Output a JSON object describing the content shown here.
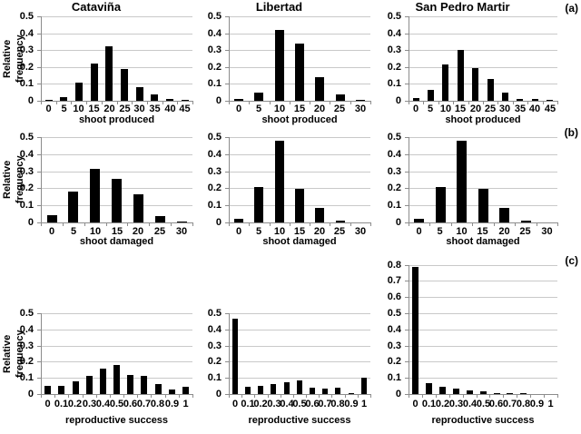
{
  "figure": {
    "row_labels": [
      "(a)",
      "(b)",
      "(c)"
    ],
    "column_titles": [
      "Cataviña",
      "Libertad",
      "San Pedro Martir"
    ],
    "y_axis_title": "Relative frequency",
    "colors": {
      "background": "#ffffff",
      "bar": "#000000",
      "gridline": "#c9c9c9",
      "axis": "#8c8c8c",
      "text": "#000000"
    }
  },
  "chart_data": [
    {
      "type": "bar",
      "row": 0,
      "col": 0,
      "title": "Cataviña",
      "xlabel": "shoot produced",
      "ylabel": "Relative frequency",
      "ylim": [
        0,
        0.5
      ],
      "yticks": [
        "0",
        "0.1",
        "0.2",
        "0.3",
        "0.4",
        "0.5"
      ],
      "grid": true,
      "categories": [
        "0",
        "5",
        "10",
        "15",
        "20",
        "25",
        "30",
        "35",
        "40",
        "45"
      ],
      "values": [
        0.005,
        0.02,
        0.11,
        0.22,
        0.32,
        0.19,
        0.08,
        0.04,
        0.01,
        0.005
      ]
    },
    {
      "type": "bar",
      "row": 0,
      "col": 1,
      "title": "Libertad",
      "xlabel": "shoot produced",
      "ylabel": null,
      "ylim": [
        0,
        0.5
      ],
      "yticks": [
        "0",
        "0.1",
        "0.2",
        "0.3",
        "0.4",
        "0.5"
      ],
      "grid": true,
      "categories": [
        "0",
        "5",
        "10",
        "15",
        "20",
        "25",
        "30"
      ],
      "values": [
        0.01,
        0.05,
        0.42,
        0.34,
        0.14,
        0.04,
        0.005
      ]
    },
    {
      "type": "bar",
      "row": 0,
      "col": 2,
      "title": "San Pedro Martir",
      "xlabel": "shoot produced",
      "ylabel": null,
      "ylim": [
        0,
        0.5
      ],
      "yticks": [
        "0",
        "0.1",
        "0.2",
        "0.3",
        "0.4",
        "0.5"
      ],
      "grid": true,
      "categories": [
        "0",
        "5",
        "10",
        "15",
        "20",
        "25",
        "30",
        "35",
        "40",
        "45"
      ],
      "values": [
        0.015,
        0.065,
        0.215,
        0.3,
        0.195,
        0.13,
        0.05,
        0.01,
        0.012,
        0.005
      ]
    },
    {
      "type": "bar",
      "row": 1,
      "col": 0,
      "title": null,
      "xlabel": "shoot damaged",
      "ylabel": "Relative frequency",
      "ylim": [
        0,
        0.5
      ],
      "yticks": [
        "0",
        "0.1",
        "0.2",
        "0.3",
        "0.4",
        "0.5"
      ],
      "grid": true,
      "categories": [
        "0",
        "5",
        "10",
        "15",
        "20",
        "25",
        "30"
      ],
      "values": [
        0.045,
        0.18,
        0.315,
        0.255,
        0.165,
        0.035,
        0.005
      ]
    },
    {
      "type": "bar",
      "row": 1,
      "col": 1,
      "title": null,
      "xlabel": "shoot damaged",
      "ylabel": null,
      "ylim": [
        0,
        0.5
      ],
      "yticks": [
        "0",
        "0.1",
        "0.2",
        "0.3",
        "0.4",
        "0.5"
      ],
      "grid": true,
      "categories": [
        "0",
        "5",
        "10",
        "15",
        "20",
        "25",
        "30"
      ],
      "values": [
        0.02,
        0.21,
        0.48,
        0.195,
        0.085,
        0.01,
        0
      ]
    },
    {
      "type": "bar",
      "row": 1,
      "col": 2,
      "title": null,
      "xlabel": "shoot damaged",
      "ylabel": null,
      "ylim": [
        0,
        0.5
      ],
      "yticks": [
        "0",
        "0.1",
        "0.2",
        "0.3",
        "0.4",
        "0.5"
      ],
      "grid": true,
      "categories": [
        "0",
        "5",
        "10",
        "15",
        "20",
        "25",
        "30"
      ],
      "values": [
        0.02,
        0.21,
        0.48,
        0.195,
        0.085,
        0.012,
        0
      ]
    },
    {
      "type": "bar",
      "row": 2,
      "col": 0,
      "title": null,
      "xlabel": "reproductive success",
      "ylabel": "Relative frequency",
      "ylim": [
        0,
        0.5
      ],
      "yticks": [
        "0",
        "0.1",
        "0.2",
        "0.3",
        "0.4",
        "0.5"
      ],
      "grid": true,
      "categories": [
        "0",
        "0.1",
        "0.2",
        "0.3",
        "0.4",
        "0.5",
        "0.6",
        "0.7",
        "0.8",
        "0.9",
        "1"
      ],
      "values": [
        0.05,
        0.05,
        0.08,
        0.11,
        0.16,
        0.18,
        0.12,
        0.11,
        0.06,
        0.03,
        0.045
      ]
    },
    {
      "type": "bar",
      "row": 2,
      "col": 1,
      "title": null,
      "xlabel": "reproductive success",
      "ylabel": null,
      "ylim": [
        0,
        0.5
      ],
      "yticks": [
        "0",
        "0.1",
        "0.2",
        "0.3",
        "0.4",
        "0.5"
      ],
      "grid": true,
      "categories": [
        "0",
        "0.1",
        "0.2",
        "0.3",
        "0.4",
        "0.5",
        "0.6",
        "0.7",
        "0.8",
        "0.9",
        "1"
      ],
      "values": [
        0.465,
        0.045,
        0.05,
        0.06,
        0.075,
        0.085,
        0.04,
        0.035,
        0.04,
        0.007,
        0.1
      ]
    },
    {
      "type": "bar",
      "row": 2,
      "col": 2,
      "title": null,
      "xlabel": "reproductive success",
      "ylabel": null,
      "ylim": [
        0,
        0.8
      ],
      "yticks": [
        "0",
        "0.1",
        "0.2",
        "0.3",
        "0.4",
        "0.5",
        "0.6",
        "0.7",
        "0.8"
      ],
      "grid": true,
      "categories": [
        "0",
        "0.1",
        "0.2",
        "0.3",
        "0.4",
        "0.5",
        "0.6",
        "0.7",
        "0.8",
        "0.9",
        "1"
      ],
      "values": [
        0.785,
        0.07,
        0.045,
        0.033,
        0.02,
        0.018,
        0.005,
        0.006,
        0.008,
        0,
        0
      ]
    }
  ]
}
